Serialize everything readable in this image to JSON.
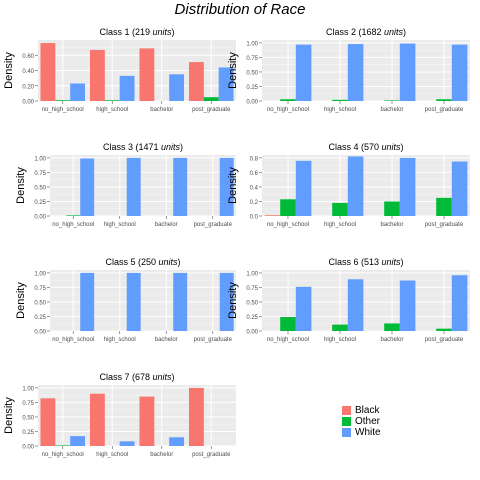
{
  "title": "Distribution of Race",
  "colors": {
    "Black": "#F8766D",
    "Other": "#00BA38",
    "White": "#619CFF"
  },
  "legend": {
    "entries": [
      "Black",
      "Other",
      "White"
    ]
  },
  "chart_data": [
    {
      "type": "bar",
      "title": "Class 1",
      "count_label": "(219 units)",
      "count_num": "219",
      "count_unit": "units",
      "ylabel": "Density",
      "categories": [
        "no_high_school",
        "high_school",
        "bachelor",
        "post_graduate"
      ],
      "ylim": [
        0,
        0.8
      ],
      "yticks": [
        "0.00",
        "0.20",
        "0.40",
        "0.60"
      ],
      "ytick_values": [
        0,
        0.2,
        0.4,
        0.6
      ],
      "series": [
        {
          "name": "Black",
          "values": [
            0.76,
            0.67,
            0.69,
            0.51
          ]
        },
        {
          "name": "Other",
          "values": [
            0.01,
            0.01,
            0.0,
            0.05
          ]
        },
        {
          "name": "White",
          "values": [
            0.23,
            0.33,
            0.35,
            0.44
          ]
        }
      ]
    },
    {
      "type": "bar",
      "title": "Class 2",
      "count_label": "(1682 units)",
      "count_num": "1682",
      "count_unit": "units",
      "ylabel": "Density",
      "categories": [
        "no_high_school",
        "high_school",
        "bachelor",
        "post_graduate"
      ],
      "ylim": [
        0,
        1.05
      ],
      "yticks": [
        "0.00",
        "0.25",
        "0.50",
        "0.75",
        "1.00"
      ],
      "ytick_values": [
        0,
        0.25,
        0.5,
        0.75,
        1.0
      ],
      "series": [
        {
          "name": "Black",
          "values": [
            0,
            0,
            0,
            0
          ]
        },
        {
          "name": "Other",
          "values": [
            0.03,
            0.02,
            0.01,
            0.03
          ]
        },
        {
          "name": "White",
          "values": [
            0.97,
            0.98,
            0.99,
            0.97
          ]
        }
      ]
    },
    {
      "type": "bar",
      "title": "Class 3",
      "count_label": "(1471 units)",
      "count_num": "1471",
      "count_unit": "units",
      "ylabel": "Density",
      "categories": [
        "no_high_school",
        "high_school",
        "bachelor",
        "post_graduate"
      ],
      "ylim": [
        0,
        1.05
      ],
      "yticks": [
        "0.00",
        "0.25",
        "0.50",
        "0.75",
        "1.00"
      ],
      "ytick_values": [
        0,
        0.25,
        0.5,
        0.75,
        1.0
      ],
      "series": [
        {
          "name": "Black",
          "values": [
            0,
            0,
            0,
            0
          ]
        },
        {
          "name": "Other",
          "values": [
            0.01,
            0,
            0,
            0
          ]
        },
        {
          "name": "White",
          "values": [
            0.99,
            1.0,
            1.0,
            1.0
          ]
        }
      ]
    },
    {
      "type": "bar",
      "title": "Class 4",
      "count_label": "(570 units)",
      "count_num": "570",
      "count_unit": "units",
      "ylabel": "Density",
      "categories": [
        "no_high_school",
        "high_school",
        "bachelor",
        "post_graduate"
      ],
      "ylim": [
        0,
        0.84
      ],
      "yticks": [
        "0.0",
        "0.2",
        "0.4",
        "0.6",
        "0.8"
      ],
      "ytick_values": [
        0,
        0.2,
        0.4,
        0.6,
        0.8
      ],
      "series": [
        {
          "name": "Black",
          "values": [
            0.01,
            0,
            0,
            0
          ]
        },
        {
          "name": "Other",
          "values": [
            0.23,
            0.18,
            0.2,
            0.25
          ]
        },
        {
          "name": "White",
          "values": [
            0.76,
            0.82,
            0.8,
            0.75
          ]
        }
      ]
    },
    {
      "type": "bar",
      "title": "Class 5",
      "count_label": "(250 units)",
      "count_num": "250",
      "count_unit": "units",
      "ylabel": "Density",
      "categories": [
        "no_high_school",
        "high_school",
        "bachelor",
        "post_graduate"
      ],
      "ylim": [
        0,
        1.05
      ],
      "yticks": [
        "0.00",
        "0.25",
        "0.50",
        "0.75",
        "1.00"
      ],
      "ytick_values": [
        0,
        0.25,
        0.5,
        0.75,
        1.0
      ],
      "series": [
        {
          "name": "Black",
          "values": [
            0,
            0,
            0,
            0
          ]
        },
        {
          "name": "Other",
          "values": [
            0,
            0,
            0,
            0
          ]
        },
        {
          "name": "White",
          "values": [
            1.0,
            1.0,
            1.0,
            1.0
          ]
        }
      ]
    },
    {
      "type": "bar",
      "title": "Class 6",
      "count_label": "(513 units)",
      "count_num": "513",
      "count_unit": "units",
      "ylabel": "Density",
      "categories": [
        "no_high_school",
        "high_school",
        "bachelor",
        "post_graduate"
      ],
      "ylim": [
        0,
        1.05
      ],
      "yticks": [
        "0.00",
        "0.25",
        "0.50",
        "0.75",
        "1.00"
      ],
      "ytick_values": [
        0,
        0.25,
        0.5,
        0.75,
        1.0
      ],
      "series": [
        {
          "name": "Black",
          "values": [
            0,
            0,
            0,
            0
          ]
        },
        {
          "name": "Other",
          "values": [
            0.24,
            0.11,
            0.13,
            0.04
          ]
        },
        {
          "name": "White",
          "values": [
            0.76,
            0.89,
            0.87,
            0.96
          ]
        }
      ]
    },
    {
      "type": "bar",
      "title": "Class 7",
      "count_label": "(678 units)",
      "count_num": "678",
      "count_unit": "units",
      "ylabel": "Density",
      "categories": [
        "no_high_school",
        "high_school",
        "bachelor",
        "post_graduate"
      ],
      "ylim": [
        0,
        1.05
      ],
      "yticks": [
        "0.00",
        "0.25",
        "0.50",
        "0.75",
        "1.00"
      ],
      "ytick_values": [
        0,
        0.25,
        0.5,
        0.75,
        1.0
      ],
      "series": [
        {
          "name": "Black",
          "values": [
            0.82,
            0.9,
            0.85,
            1.0
          ]
        },
        {
          "name": "Other",
          "values": [
            0.01,
            0,
            0,
            0
          ]
        },
        {
          "name": "White",
          "values": [
            0.17,
            0.08,
            0.15,
            0
          ]
        }
      ]
    }
  ]
}
